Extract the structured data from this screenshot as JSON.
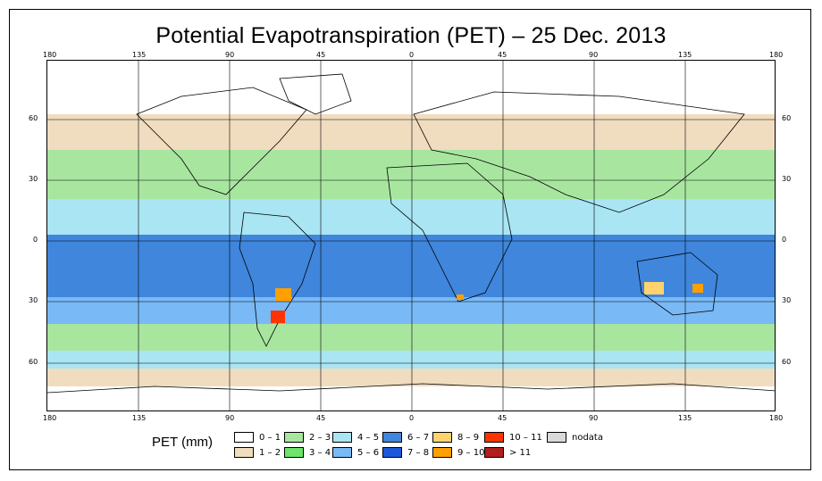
{
  "title": "Potential Evapotranspiration (PET) – 25 Dec. 2013",
  "lon_ticks_top": [
    "180",
    "135",
    "90",
    "45",
    "0",
    "45",
    "90",
    "135",
    "180"
  ],
  "lon_ticks_bottom": [
    "180",
    "135",
    "90",
    "45",
    "0",
    "45",
    "90",
    "135",
    "180"
  ],
  "lat_ticks_left": [
    "60",
    "30",
    "0",
    "30",
    "60"
  ],
  "lat_ticks_right": [
    "60",
    "30",
    "0",
    "30",
    "60"
  ],
  "legend": {
    "title": "PET (mm)",
    "items": [
      {
        "label": "0 – 1",
        "color": "#ffffff"
      },
      {
        "label": "1 – 2",
        "color": "#f0dcbe"
      },
      {
        "label": "2 – 3",
        "color": "#a8e6a0"
      },
      {
        "label": "3 – 4",
        "color": "#6ee46a"
      },
      {
        "label": "4 – 5",
        "color": "#a9e5f3"
      },
      {
        "label": "5 – 6",
        "color": "#79b9f5"
      },
      {
        "label": "6 – 7",
        "color": "#3f86dc"
      },
      {
        "label": "7 – 8",
        "color": "#1d58d8"
      },
      {
        "label": "8 – 9",
        "color": "#ffd36b"
      },
      {
        "label": "9 – 10",
        "color": "#ff9f00"
      },
      {
        "label": "10 – 11",
        "color": "#ff3300"
      },
      {
        "label": "> 11",
        "color": "#b01e1e"
      },
      {
        "label": "nodata",
        "color": "#d9d9d9"
      }
    ]
  },
  "bands": [
    {
      "range": "0 – 1",
      "color": "#ffffff"
    },
    {
      "range": "1 – 2",
      "color": "#f0dcbe"
    },
    {
      "range": "2 – 3",
      "color": "#a8e6a0"
    },
    {
      "range": "4 – 5",
      "color": "#a9e5f3"
    },
    {
      "range": "5 – 6",
      "color": "#79b9f5"
    },
    {
      "range": "6 – 7",
      "color": "#3f86dc"
    }
  ]
}
